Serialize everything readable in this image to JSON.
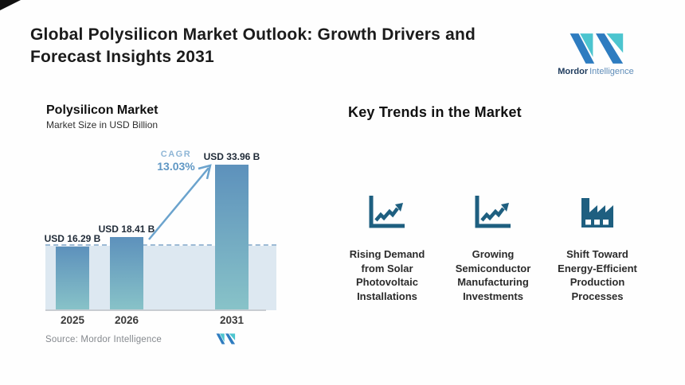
{
  "header": {
    "title_lines": [
      "Global Polysilicon Market Outlook: Growth Drivers and",
      "Forecast Insights 2031"
    ],
    "brand": {
      "name_bold": "Mordor",
      "name_light": "Intelligence",
      "logo_icon": "mordor-logo-icon"
    }
  },
  "chart_data": {
    "type": "bar",
    "title": "Polysilicon Market",
    "subtitle": "Market Size in USD Billion",
    "categories": [
      "2025",
      "2026",
      "2031"
    ],
    "values": [
      16.29,
      18.41,
      33.96
    ],
    "value_labels": [
      "USD 16.29 B",
      "USD 18.41 B",
      "USD 33.96 B"
    ],
    "ylabel": "Market Size in USD Billion",
    "cagr_label": "CAGR",
    "cagr_value": "13.03%",
    "annotations": [
      "dashed reference line at 2025 level",
      "growth arrow from 2026 to 2031"
    ],
    "legend": "none",
    "grid": "off",
    "source": "Source: Mordor Intelligence"
  },
  "trends": {
    "heading": "Key Trends in the Market",
    "items": [
      {
        "icon": "line-chart-up-icon",
        "label": "Rising Demand from Solar Photovoltaic Installations",
        "lines": [
          "Rising Demand",
          "from Solar",
          "Photovoltaic",
          "Installations"
        ]
      },
      {
        "icon": "line-chart-up-icon",
        "label": "Growing Semiconductor Manufacturing Investments",
        "lines": [
          "Growing",
          "Semiconductor",
          "Manufacturing",
          "Investments"
        ]
      },
      {
        "icon": "factory-icon",
        "label": "Shift Toward Energy-Efficient Production Processes",
        "lines": [
          "Shift Toward",
          "Energy-Efficient",
          "Production",
          "Processes"
        ]
      }
    ]
  },
  "colors": {
    "bar_top": "#5d91bc",
    "bar_bottom": "#88c3c8",
    "band": "#dde8f1",
    "dashed": "#9dbad5",
    "arrow": "#6ba3cd",
    "cagr": "#8fb6d6",
    "cagr_value": "#5f97c4",
    "icon": "#1e5f80",
    "logo_blue": "#2e7cc0",
    "logo_teal": "#4cc5cf",
    "brand_dark": "#1d3a5c",
    "brand_light": "#5e8cb8"
  }
}
